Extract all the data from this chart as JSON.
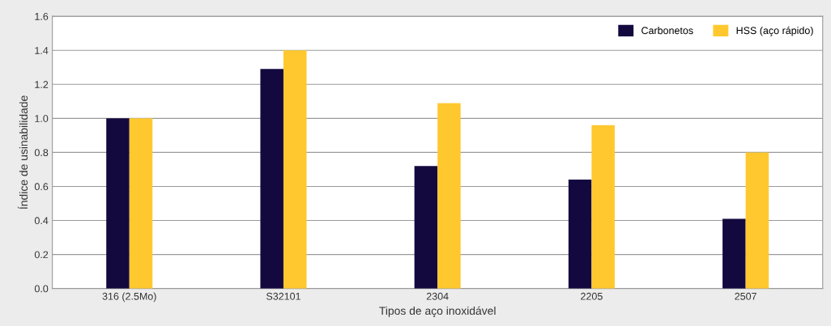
{
  "chart_data": {
    "type": "bar",
    "xlabel": "Tipos de aço inoxidável",
    "ylabel": "Índice de usinabilidade",
    "categories": [
      "316 (2.5Mo)",
      "S32101",
      "2304",
      "2205",
      "2507"
    ],
    "series": [
      {
        "name": "Carbonetos",
        "color": "#14093f",
        "values": [
          1.0,
          1.29,
          0.72,
          0.64,
          0.41
        ]
      },
      {
        "name": "HSS (aço rápido)",
        "color": "#ffc82e",
        "values": [
          1.0,
          1.4,
          1.09,
          0.96,
          0.8
        ]
      }
    ],
    "ylim": [
      0,
      1.6
    ],
    "yticks": [
      {
        "value": 0,
        "label": "0.0"
      },
      0.2,
      0.4,
      0.6,
      0.8,
      {
        "value": 1,
        "label": "1.0"
      },
      1.2,
      1.4,
      1.6
    ],
    "grid": "y",
    "legend": "top right"
  }
}
